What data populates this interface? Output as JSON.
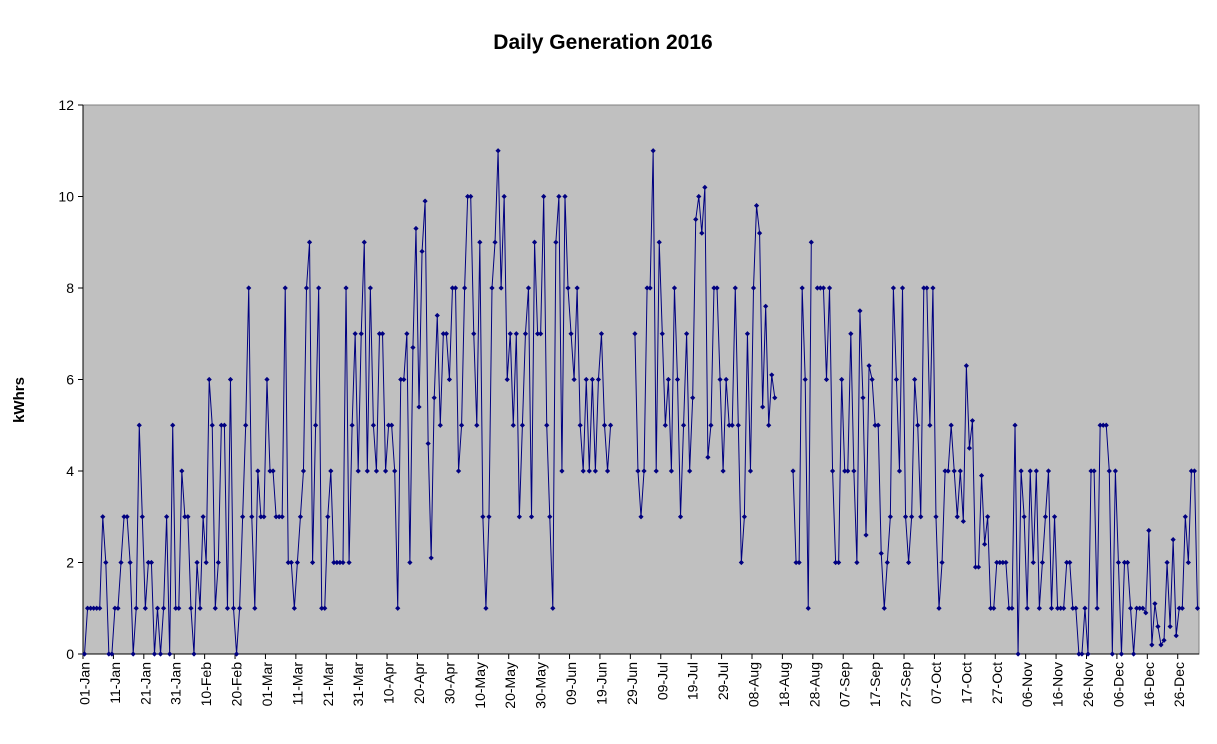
{
  "chart_data": {
    "type": "line",
    "title": "Daily Generation 2016",
    "ylabel": "kWhrs",
    "xlabel": "",
    "ylim": [
      0,
      12
    ],
    "yticks": [
      0,
      2,
      4,
      6,
      8,
      10,
      12
    ],
    "grid": false,
    "legend": "none",
    "colors": {
      "series": "#000080",
      "plot_background": "#C0C0C0",
      "axis": "#000000"
    },
    "x_tick_labels": [
      "01-Jan",
      "11-Jan",
      "21-Jan",
      "31-Jan",
      "10-Feb",
      "20-Feb",
      "01-Mar",
      "11-Mar",
      "21-Mar",
      "31-Mar",
      "10-Apr",
      "20-Apr",
      "30-Apr",
      "10-May",
      "20-May",
      "30-May",
      "09-Jun",
      "19-Jun",
      "29-Jun",
      "09-Jul",
      "19-Jul",
      "29-Jul",
      "08-Aug",
      "18-Aug",
      "28-Aug",
      "07-Sep",
      "17-Sep",
      "27-Sep",
      "07-Oct",
      "17-Oct",
      "27-Oct",
      "06-Nov",
      "16-Nov",
      "26-Nov",
      "06-Dec",
      "16-Dec",
      "26-Dec"
    ],
    "x_tick_interval_days": 10,
    "series": [
      {
        "values": [
          0,
          1,
          1,
          1,
          1,
          1,
          3,
          2,
          0,
          0,
          1,
          1,
          2,
          3,
          3,
          2,
          0,
          1,
          5,
          3,
          1,
          2,
          2,
          0,
          1,
          0,
          1,
          3,
          0,
          5,
          1,
          1,
          4,
          3,
          3,
          1,
          0,
          2,
          1,
          3,
          2,
          6,
          5,
          1,
          2,
          5,
          5,
          1,
          6,
          1,
          0,
          1,
          3,
          5,
          8,
          3,
          1,
          4,
          3,
          3,
          6,
          4,
          4,
          3,
          3,
          3,
          8,
          2,
          2,
          1,
          2,
          3,
          4,
          8,
          9,
          2,
          5,
          8,
          1,
          1,
          3,
          4,
          2,
          2,
          2,
          2,
          8,
          2,
          5,
          7,
          4,
          7,
          9,
          4,
          8,
          5,
          4,
          7,
          7,
          4,
          5,
          5,
          4,
          1,
          6,
          6,
          7,
          2,
          6.7,
          9.3,
          5.4,
          8.8,
          9.9,
          4.6,
          2.1,
          5.6,
          7.4,
          5,
          7,
          7,
          6,
          8,
          8,
          4,
          5,
          8,
          10,
          10,
          7,
          5,
          9,
          3,
          1,
          3,
          8,
          9,
          11,
          8,
          10,
          6,
          7,
          5,
          7,
          3,
          5,
          7,
          8,
          3,
          9,
          7,
          7,
          10,
          5,
          3,
          1,
          9,
          10,
          4,
          10,
          8,
          7,
          6,
          8,
          5,
          4,
          6,
          4,
          6,
          4,
          6,
          7,
          5,
          4,
          5,
          null,
          null,
          null,
          null,
          null,
          null,
          null,
          7,
          4,
          3,
          4,
          8,
          8,
          11,
          4,
          9,
          7,
          5,
          6,
          4,
          8,
          6,
          3,
          5,
          7,
          4,
          5.6,
          9.5,
          10,
          9.2,
          10.2,
          4.3,
          5,
          8,
          8,
          6,
          4,
          6,
          5,
          5,
          8,
          5,
          2,
          3,
          7,
          4,
          8,
          9.8,
          9.2,
          5.4,
          7.6,
          5,
          6.1,
          5.6,
          null,
          null,
          null,
          null,
          null,
          4,
          2,
          2,
          8,
          6,
          1,
          9,
          null,
          8,
          8,
          8,
          6,
          8,
          4,
          2,
          2,
          6,
          4,
          4,
          7,
          4,
          2,
          7.5,
          5.6,
          2.6,
          6.3,
          6,
          5,
          5,
          2.2,
          1,
          2,
          3,
          8,
          6,
          4,
          8,
          3,
          2,
          3,
          6,
          5,
          3,
          8,
          8,
          5,
          8,
          3,
          1,
          2,
          4,
          4,
          5,
          4,
          3,
          4,
          2.9,
          6.3,
          4.5,
          5.1,
          1.9,
          1.9,
          3.9,
          2.4,
          3,
          1,
          1,
          2,
          2,
          2,
          2,
          1,
          1,
          5,
          0,
          4,
          3,
          1,
          4,
          2,
          4,
          1,
          2,
          3,
          4,
          1,
          3,
          1,
          1,
          1,
          2,
          2,
          1,
          1,
          0,
          0,
          1,
          0,
          4,
          4,
          1,
          5,
          5,
          5,
          4,
          0,
          4,
          2,
          0,
          2,
          2,
          1,
          0,
          1,
          1,
          1,
          0.9,
          2.7,
          0.2,
          1.1,
          0.6,
          0.2,
          0.3,
          2,
          0.6,
          2.5,
          0.4,
          1,
          1,
          3,
          2,
          4,
          4,
          1
        ]
      }
    ]
  }
}
